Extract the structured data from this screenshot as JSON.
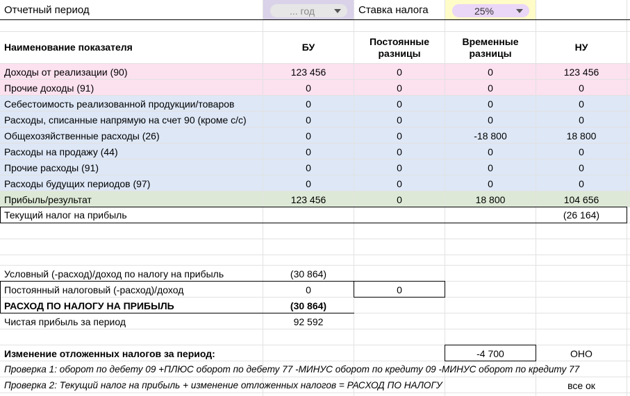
{
  "period": {
    "label": "Отчетный период",
    "value": "... год"
  },
  "tax_rate": {
    "label": "Ставка налога",
    "value": "25%"
  },
  "colors": {
    "pink": "#fce1ef",
    "blue": "#dde7f6",
    "green": "#dde9d6",
    "period_bg": "#d9d2e9",
    "rate_bg": "#fffcc8",
    "rate_chip": "#ead6f7",
    "period_chip": "#e6e6e6"
  },
  "headers": {
    "name": "Наименование показателя",
    "bu": "БУ",
    "perm": "Постоянные разницы",
    "temp": "Временные разницы",
    "nu": "НУ"
  },
  "rows": [
    {
      "name": "Доходы от реализации (90)",
      "bu": "123 456",
      "perm": "0",
      "temp": "0",
      "nu": "123 456"
    },
    {
      "name": "Прочие доходы (91)",
      "bu": "0",
      "perm": "0",
      "temp": "0",
      "nu": "0"
    },
    {
      "name": "Себестоимость реализованной продукции/товаров",
      "bu": "0",
      "perm": "0",
      "temp": "0",
      "nu": "0"
    },
    {
      "name": "Расходы, списанные напрямую на счет 90 (кроме с/с)",
      "bu": "0",
      "perm": "0",
      "temp": "0",
      "nu": "0"
    },
    {
      "name": "Общехозяйственные расходы (26)",
      "bu": "0",
      "perm": "0",
      "temp": "-18 800",
      "nu": "18 800"
    },
    {
      "name": "Расходы на продажу (44)",
      "bu": "0",
      "perm": "0",
      "temp": "0",
      "nu": "0"
    },
    {
      "name": "Прочие расходы (91)",
      "bu": "0",
      "perm": "0",
      "temp": "0",
      "nu": "0"
    },
    {
      "name": "Расходы будущих периодов (97)",
      "bu": "0",
      "perm": "0",
      "temp": "0",
      "nu": "0"
    },
    {
      "name": "Прибыль/результат",
      "bu": "123 456",
      "perm": "0",
      "temp": "18 800",
      "nu": "104 656"
    }
  ],
  "current_tax": {
    "name": "Текущий налог на прибыль",
    "nu": "(26 164)"
  },
  "conditional": {
    "name": "Условный (-расход)/доход по налогу на прибыль",
    "bu": "(30 864)"
  },
  "permanent": {
    "name": "Постоянный налоговый (-расход)/доход",
    "bu": "0",
    "perm": "0"
  },
  "expense": {
    "name": "РАСХОД ПО НАЛОГУ НА ПРИБЫЛЬ",
    "bu": "(30 864)"
  },
  "net_profit": {
    "name": "Чистая прибыль за период",
    "bu": "92 592"
  },
  "deferred": {
    "name": "Изменение отложенных налогов за период:",
    "value": "-4 700",
    "type": "ОНО"
  },
  "check1": {
    "text": "Проверка 1: оборот по дебету 09 +ПЛЮС оборот по дебету 77 -МИНУС оборот по кредиту 09 -МИНУС оборот по кредиту 77"
  },
  "check2": {
    "text": "Проверка 2: Текущий налог на прибыль + изменение отложенных налогов = РАСХОД ПО НАЛОГУ",
    "result": "все ок"
  }
}
